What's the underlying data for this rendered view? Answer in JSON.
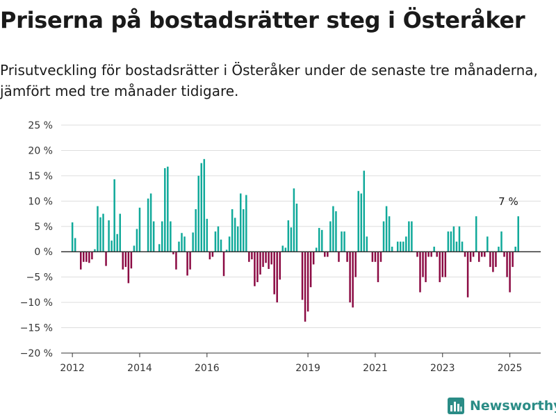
{
  "title": "Priserna på bostadsrätter steg i Österåker",
  "subtitle": "Prisutveckling för bostadsrätter i Österåker under de senaste tre månaderna, jämfört med tre månader tidigare.",
  "brand": "Newsworthy",
  "colors": {
    "positive": "#10a99a",
    "negative": "#8b0a43",
    "grid": "#dddddd",
    "axis": "#333333",
    "brand": "#2a8c86"
  },
  "chart_data": {
    "type": "bar",
    "title": "Priserna på bostadsrätter steg i Österåker",
    "unit": "%",
    "ylim": [
      -20,
      25
    ],
    "yticks": [
      -20,
      -15,
      -10,
      -5,
      0,
      5,
      10,
      15,
      20,
      25
    ],
    "ytick_labels": [
      "−20 %",
      "−15 %",
      "−10 %",
      "−5 %",
      "0 %",
      "5 %",
      "10 %",
      "15 %",
      "20 %",
      "25 %"
    ],
    "xlim": [
      "2011-09-01",
      "2025-12-01"
    ],
    "xtick_labels": [
      "2012",
      "2014",
      "2016",
      "2019",
      "2021",
      "2023",
      "2025"
    ],
    "xtick_dates": [
      "2012-01-01",
      "2014-01-01",
      "2016-01-01",
      "2019-01-01",
      "2021-01-01",
      "2023-01-01",
      "2025-01-01"
    ],
    "grid": true,
    "start": "2012-01-01",
    "frequency": "monthly",
    "values": [
      5.8,
      2.7,
      0,
      -3.5,
      -2,
      -2,
      -2.2,
      -1.5,
      0.5,
      9,
      6.8,
      7.5,
      -2.8,
      6.2,
      2.2,
      14.3,
      3.5,
      7.5,
      -3.5,
      -3,
      -6.2,
      -3.3,
      1.2,
      4.5,
      8.7,
      0,
      0,
      10.5,
      11.5,
      6,
      0,
      1.5,
      6,
      16.5,
      16.8,
      6,
      -0.5,
      -3.5,
      2,
      3.7,
      3,
      -4.7,
      -3.5,
      3.8,
      8.4,
      15,
      17.5,
      18.3,
      6.5,
      -1.5,
      -1,
      4,
      5,
      2.4,
      -4.8,
      0.4,
      3,
      8.4,
      6.7,
      5,
      11.5,
      8.4,
      11.2,
      -2,
      -1.5,
      -6.8,
      -6,
      -4.5,
      -3,
      -2.2,
      -3.4,
      -2.5,
      -8.4,
      -10,
      -5.5,
      1.2,
      0.8,
      6.2,
      4.8,
      12.5,
      9.5,
      0,
      -9.5,
      -13.8,
      -11.8,
      -7,
      -2.5,
      0.8,
      4.7,
      4.3,
      -1,
      -1,
      6,
      9,
      8,
      -2,
      4,
      4,
      -2,
      -10,
      -11,
      -5,
      12,
      11.5,
      16,
      3,
      0,
      -2,
      -2,
      -6,
      -2,
      6,
      9,
      7,
      1,
      0,
      2,
      2,
      2,
      3,
      6,
      6,
      0,
      -1,
      -8,
      -5,
      -6,
      -1,
      -1,
      1,
      -1,
      -6,
      -5,
      -5,
      4,
      4,
      5,
      2,
      5,
      2,
      -1,
      -9,
      -2,
      -1,
      7,
      -2,
      -1,
      -1,
      3,
      -3,
      -4,
      -3,
      1,
      4,
      -1,
      -5,
      -8,
      -3,
      1,
      7
    ],
    "annotation": {
      "text": "7 %",
      "value": 7
    }
  }
}
